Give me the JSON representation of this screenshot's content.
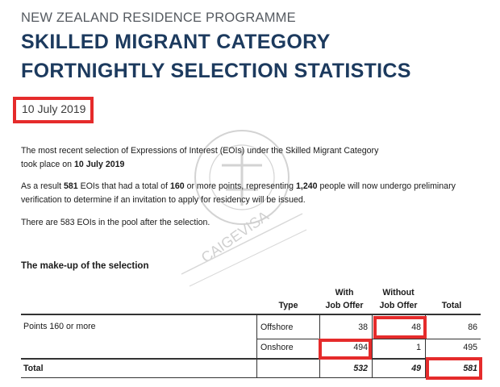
{
  "header": {
    "kicker": "NEW ZEALAND RESIDENCE PROGRAMME",
    "title_line1": "SKILLED MIGRANT CATEGORY",
    "title_line2": "FORTNIGHTLY SELECTION STATISTICS",
    "date": "10 July 2019"
  },
  "body": {
    "p1_a": "The most recent selection of Expressions of Interest (EOIs) under the Skilled Migrant Category",
    "p1_b": "took place on ",
    "p1_date": "10 July 2019",
    "p2_a": "As a result ",
    "p2_count": "581",
    "p2_b": " EOIs that had a total of ",
    "p2_points": "160",
    "p2_c": " or more points, representing ",
    "p2_people": "1,240",
    "p2_d": " people will now undergo preliminary",
    "p2_line2": "verification to determine if an invitation to apply for residency will be issued.",
    "p3": "There are 583 EOIs in the pool after the selection."
  },
  "watermark_text": "CAIGEVISA",
  "table": {
    "section_title": "The make-up of the selection",
    "headers": {
      "type": "Type",
      "with_1": "With",
      "with_2": "Job Offer",
      "without_1": "Without",
      "without_2": "Job Offer",
      "total": "Total"
    },
    "group_label": "Points 160 or more",
    "rows": [
      {
        "type": "Offshore",
        "with": "38",
        "without": "48",
        "total": "86"
      },
      {
        "type": "Onshore",
        "with": "494",
        "without": "1",
        "total": "495"
      }
    ],
    "total_row": {
      "label": "Total",
      "with": "532",
      "without": "49",
      "total": "581"
    }
  }
}
